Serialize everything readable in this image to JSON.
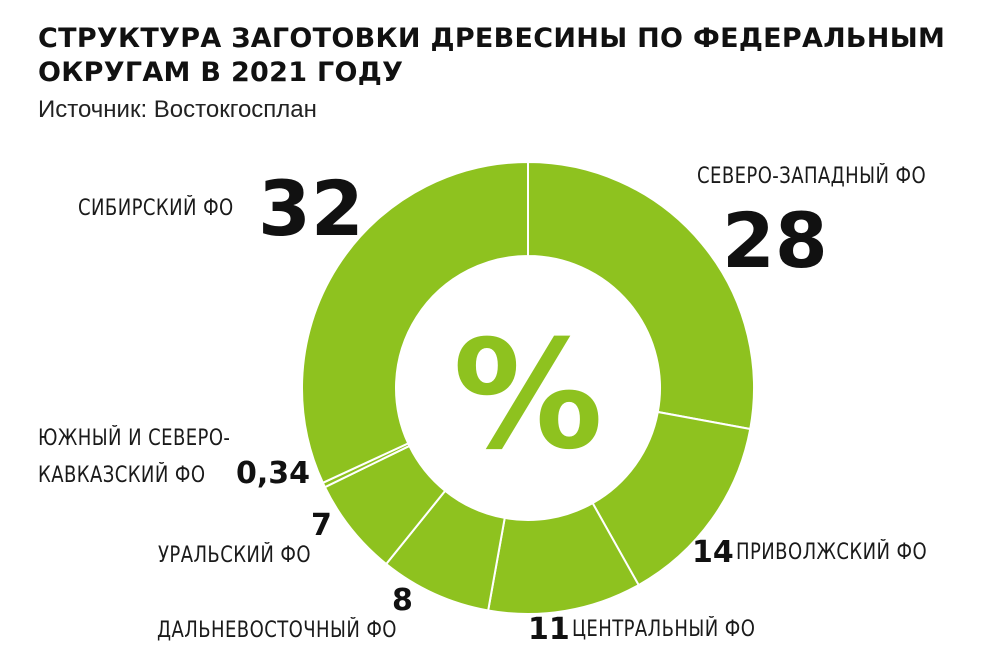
{
  "header": {
    "title_line1": "СТРУКТУРА ЗАГОТОВКИ ДРЕВЕСИНЫ ПО ФЕДЕРАЛЬНЫМ",
    "title_line2": "ОКРУГАМ В 2021 ГОДУ",
    "source": "Источник: Востокгосплан"
  },
  "chart_data": {
    "type": "pie",
    "title": "СТРУКТУРА ЗАГОТОВКИ ДРЕВЕСИНЫ ПО ФЕДЕРАЛЬНЫМ ОКРУГАМ В 2021 ГОДУ",
    "center_label": "%",
    "colors": {
      "slice": "#8ec21f",
      "separator": "#ffffff"
    },
    "slices": [
      {
        "label": "СЕВЕРО-ЗАПАДНЫЙ ФО",
        "value": 28,
        "value_label": "28"
      },
      {
        "label": "ПРИВОЛЖСКИЙ ФО",
        "value": 14,
        "value_label": "14"
      },
      {
        "label": "ЦЕНТРАЛЬНЫЙ ФО",
        "value": 11,
        "value_label": "11"
      },
      {
        "label": "ДАЛЬНЕВОСТОЧНЫЙ ФО",
        "value": 8,
        "value_label": "8"
      },
      {
        "label": "УРАЛЬСКИЙ ФО",
        "value": 7,
        "value_label": "7"
      },
      {
        "label": "ЮЖНЫЙ И СЕВЕРО-КАВКАЗСКИЙ ФО",
        "label_line1": "ЮЖНЫЙ И СЕВЕРО-",
        "label_line2": "КАВКАЗСКИЙ ФО",
        "value": 0.34,
        "value_label": "0,34"
      },
      {
        "label": "СИБИРСКИЙ ФО",
        "value": 32,
        "value_label": "32"
      }
    ]
  }
}
